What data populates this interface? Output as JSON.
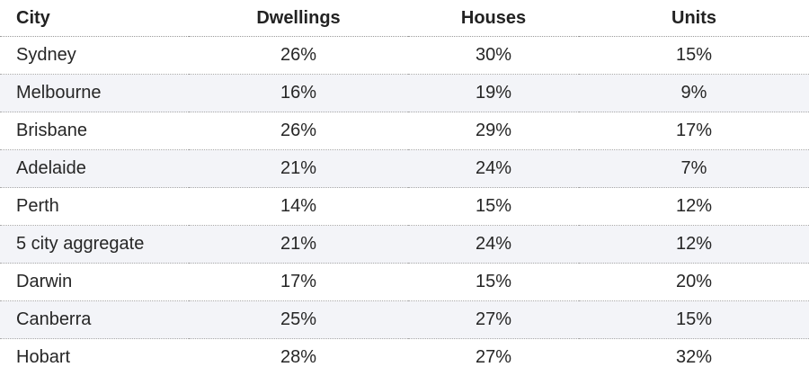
{
  "chart_data": {
    "type": "table",
    "columns": [
      "City",
      "Dwellings",
      "Houses",
      "Units"
    ],
    "rows": [
      {
        "city": "Sydney",
        "dwellings": "26%",
        "houses": "30%",
        "units": "15%"
      },
      {
        "city": "Melbourne",
        "dwellings": "16%",
        "houses": "19%",
        "units": "9%"
      },
      {
        "city": "Brisbane",
        "dwellings": "26%",
        "houses": "29%",
        "units": "17%"
      },
      {
        "city": "Adelaide",
        "dwellings": "21%",
        "houses": "24%",
        "units": "7%"
      },
      {
        "city": "Perth",
        "dwellings": "14%",
        "houses": "15%",
        "units": "12%"
      },
      {
        "city": "5 city aggregate",
        "dwellings": "21%",
        "houses": "24%",
        "units": "12%"
      },
      {
        "city": "Darwin",
        "dwellings": "17%",
        "houses": "15%",
        "units": "20%"
      },
      {
        "city": "Canberra",
        "dwellings": "25%",
        "houses": "27%",
        "units": "15%"
      },
      {
        "city": "Hobart",
        "dwellings": "28%",
        "houses": "27%",
        "units": "32%"
      }
    ],
    "colors": {
      "text": "#222222",
      "alt_row_background": "#f3f4f8",
      "divider": "#a8a8a8"
    }
  }
}
